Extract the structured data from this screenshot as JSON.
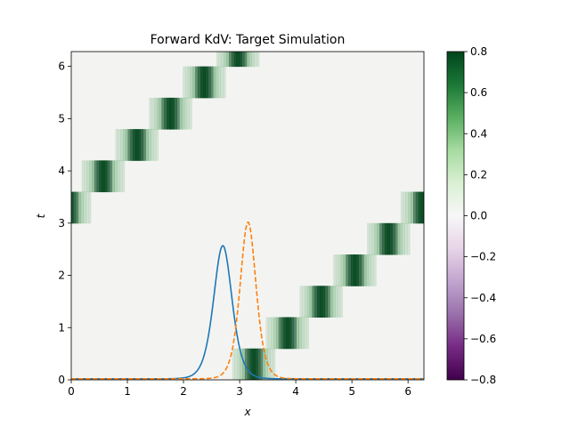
{
  "chart_data": {
    "type": "heatmap",
    "title": "Forward KdV: Target Simulation",
    "xlabel": "x",
    "ylabel": "t",
    "xlim": [
      0,
      6.283
    ],
    "ylim": [
      0,
      6.283
    ],
    "x_ticks": [
      "0",
      "1",
      "2",
      "3",
      "4",
      "5",
      "6"
    ],
    "y_ticks": [
      "0",
      "1",
      "2",
      "3",
      "4",
      "5",
      "6"
    ],
    "colorbar": {
      "colormap": "PRGn",
      "range": [
        -0.8,
        0.8
      ],
      "ticks": [
        "0.8",
        "0.6",
        "0.4",
        "0.2",
        "0.0",
        "−0.2",
        "−0.4",
        "−0.6",
        "−0.8"
      ]
    },
    "colors": {
      "background": "#f3f4f2",
      "dark_green": "#00441b",
      "mid_green": "#2e8b3c",
      "line_blue": "#1f77b4",
      "line_orange": "#ff7f0e"
    },
    "soliton_band": {
      "speed": 1.0,
      "x0_at_t0": 3.25,
      "width": 0.18,
      "peak": 0.8,
      "time_step": 0.6
    },
    "overlay_series": [
      {
        "style": "solid",
        "color": "#1f77b4",
        "center": 2.7,
        "amplitude": 2.55,
        "width": 0.22
      },
      {
        "style": "dashed",
        "color": "#ff7f0e",
        "center": 3.15,
        "amplitude": 3.0,
        "width": 0.19
      }
    ]
  }
}
